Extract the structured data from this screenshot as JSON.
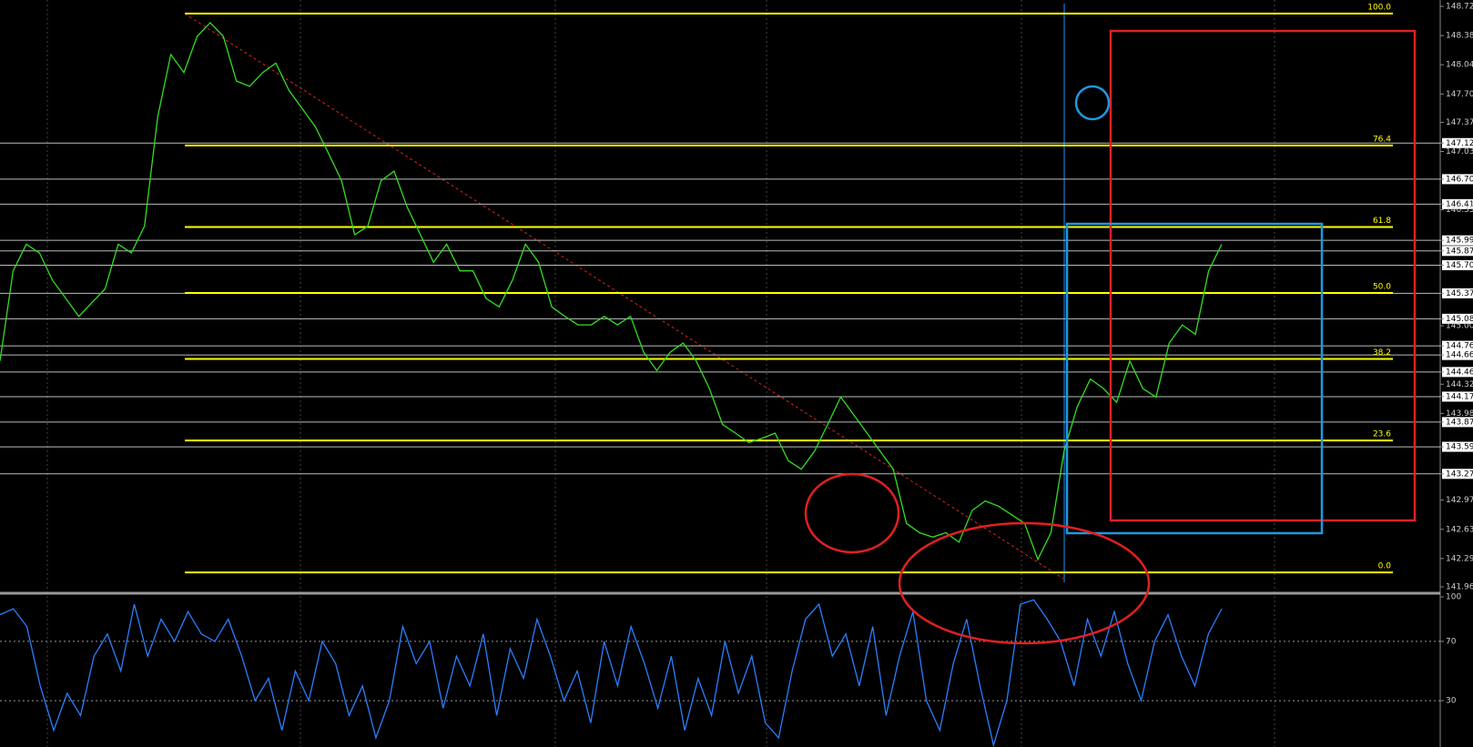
{
  "chart_data": [
    {
      "type": "line",
      "series": [
        {
          "color": "#33dd22",
          "values": [
            144.59,
            145.64,
            145.95,
            145.85,
            145.53,
            145.32,
            145.11,
            145.27,
            145.43,
            145.95,
            145.85,
            146.16,
            147.43,
            148.16,
            147.95,
            148.37,
            148.53,
            148.37,
            147.85,
            147.79,
            147.95,
            148.06,
            147.74,
            147.53,
            147.32,
            147.01,
            146.69,
            146.06,
            146.16,
            146.69,
            146.8,
            146.38,
            146.06,
            145.74,
            145.95,
            145.64,
            145.64,
            145.32,
            145.22,
            145.53,
            145.95,
            145.74,
            145.22,
            145.11,
            145.01,
            145.01,
            145.11,
            145.01,
            145.11,
            144.69,
            144.48,
            144.69,
            144.8,
            144.59,
            144.27,
            143.85,
            143.75,
            143.64,
            143.69,
            143.75,
            143.43,
            143.33,
            143.54,
            143.85,
            144.17,
            143.96,
            143.75,
            143.54,
            143.33,
            142.7,
            142.59,
            142.54,
            142.59,
            142.48,
            142.85,
            142.96,
            142.9,
            142.8,
            142.7,
            142.28,
            142.59,
            143.54,
            144.06,
            144.38,
            144.27,
            144.11,
            144.59,
            144.27,
            144.17,
            144.8,
            145.01,
            144.9,
            145.64,
            145.95
          ]
        }
      ],
      "ylim": [
        141.96,
        148.72
      ],
      "yticks": [
        {
          "value": 148.72,
          "label": "148.720"
        },
        {
          "value": 148.38,
          "label": "148.380"
        },
        {
          "value": 148.04,
          "label": "148.040"
        },
        {
          "value": 147.7,
          "label": "147.700"
        },
        {
          "value": 147.37,
          "label": "147.370"
        },
        {
          "value": 147.128,
          "label": "147.128",
          "line": true
        },
        {
          "value": 147.03,
          "label": "147.030"
        },
        {
          "value": 146.708,
          "label": "146.708",
          "line": true
        },
        {
          "value": 146.417,
          "label": "146.417",
          "line": true
        },
        {
          "value": 146.35,
          "label": "146.350"
        },
        {
          "value": 145.995,
          "label": "145.995",
          "line": true
        },
        {
          "value": 145.872,
          "label": "145.872",
          "line": true
        },
        {
          "value": 145.706,
          "label": "145.706",
          "line": true
        },
        {
          "value": 145.378,
          "label": "145.378",
          "line": true
        },
        {
          "value": 145.082,
          "label": "145.082",
          "line": true
        },
        {
          "value": 145,
          "label": "145.000"
        },
        {
          "value": 144.767,
          "label": "144.767",
          "line": true
        },
        {
          "value": 144.66,
          "label": "144.660",
          "line": true
        },
        {
          "value": 144.462,
          "label": "144.462",
          "line": true
        },
        {
          "value": 144.32,
          "label": "144.320"
        },
        {
          "value": 144.175,
          "label": "144.175",
          "line": true
        },
        {
          "value": 143.98,
          "label": "143.980"
        },
        {
          "value": 143.879,
          "label": "143.879",
          "line": true
        },
        {
          "value": 143.591,
          "label": "143.591",
          "line": true
        },
        {
          "value": 143.276,
          "label": "143.276",
          "line": true
        },
        {
          "value": 142.97,
          "label": "142.970"
        },
        {
          "value": 142.63,
          "label": "142.630"
        },
        {
          "value": 142.29,
          "label": "142.290"
        },
        {
          "value": 141.96,
          "label": "141.960"
        }
      ],
      "fibonacci": [
        {
          "label": "100.0",
          "value": 148.636
        },
        {
          "label": "76.4",
          "value": 147.1
        },
        {
          "label": "61.8",
          "value": 146.15
        },
        {
          "label": "50.0",
          "value": 145.382
        },
        {
          "label": "38.2",
          "value": 144.614
        },
        {
          "label": "23.6",
          "value": 143.664
        },
        {
          "label": "0.0",
          "value": 142.128
        }
      ],
      "fib_color": "#ffff00"
    },
    {
      "type": "line",
      "series": [
        {
          "color": "#2a7fff",
          "values": [
            88,
            92,
            80,
            40,
            10,
            35,
            20,
            60,
            75,
            50,
            95,
            60,
            85,
            70,
            90,
            75,
            70,
            85,
            60,
            30,
            45,
            10,
            50,
            30,
            70,
            55,
            20,
            40,
            5,
            30,
            80,
            55,
            70,
            25,
            60,
            40,
            75,
            20,
            65,
            45,
            85,
            60,
            30,
            50,
            15,
            70,
            40,
            80,
            55,
            25,
            60,
            10,
            45,
            20,
            70,
            35,
            60,
            15,
            5,
            50,
            85,
            95,
            60,
            75,
            40,
            80,
            20,
            60,
            90,
            30,
            10,
            55,
            85,
            40,
            0,
            30,
            95,
            98,
            85,
            70,
            40,
            85,
            60,
            90,
            55,
            30,
            70,
            88,
            60,
            40,
            75,
            92
          ]
        }
      ],
      "ylim": [
        0,
        100
      ],
      "yticks": [
        100,
        70,
        30
      ]
    }
  ]
}
